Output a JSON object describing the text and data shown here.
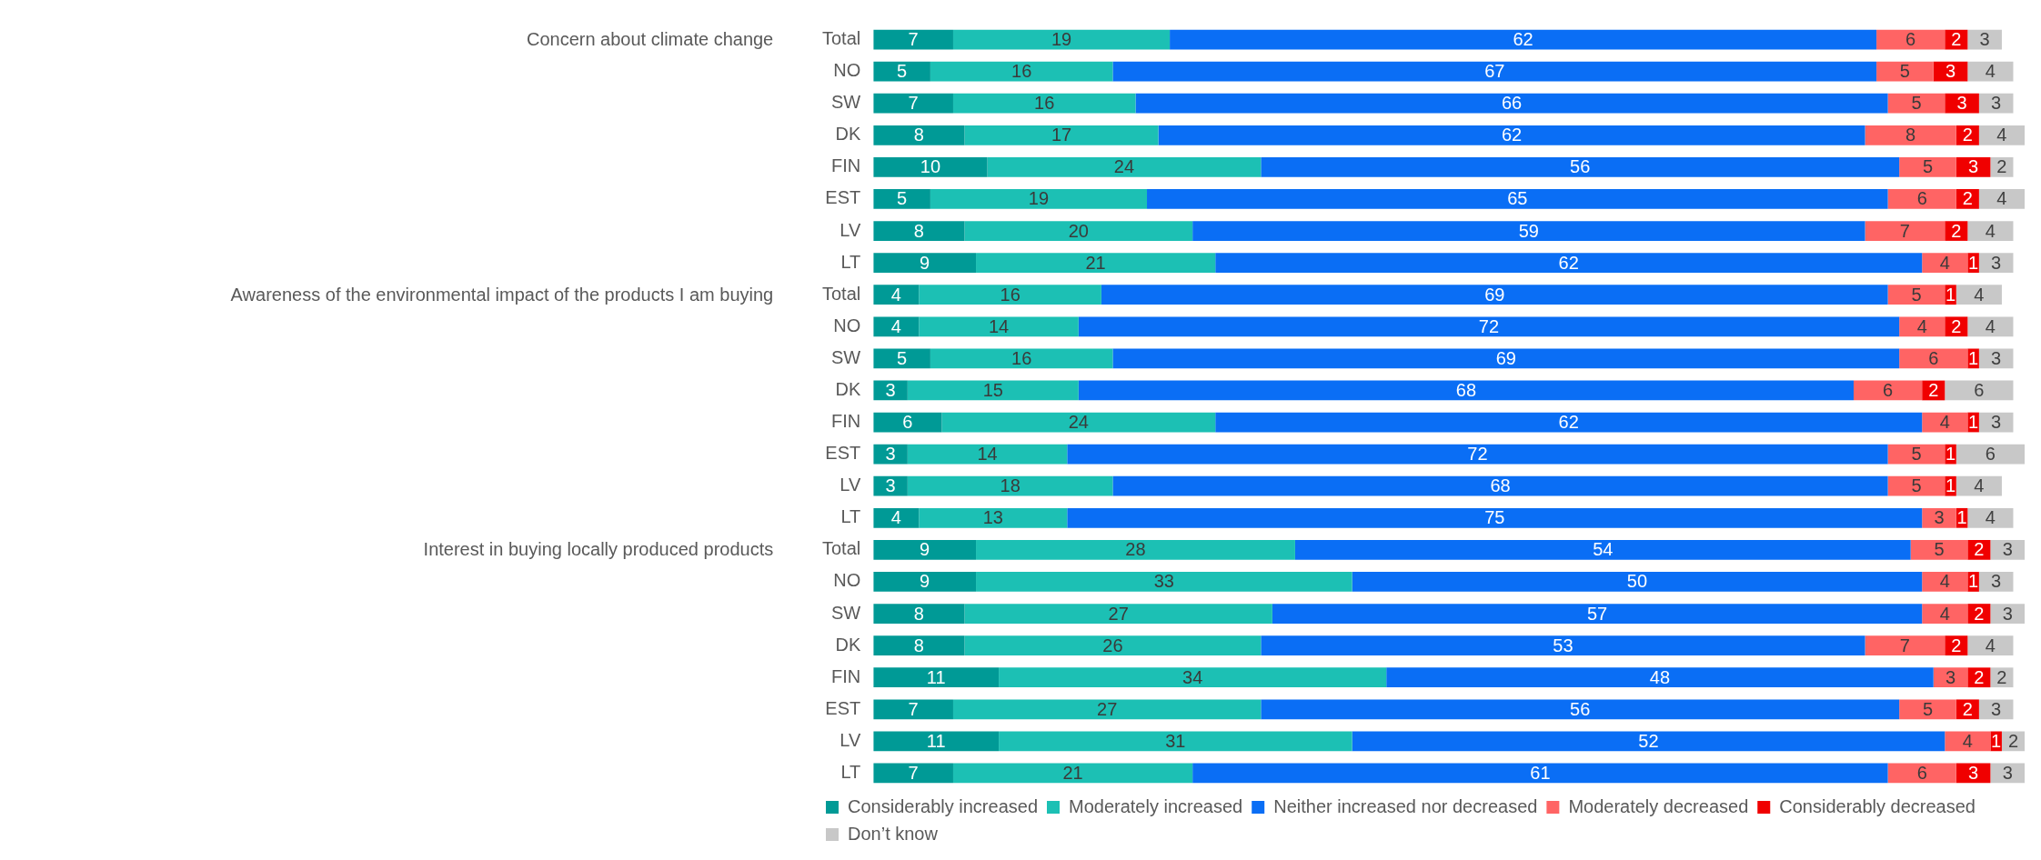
{
  "chart_data": {
    "type": "bar",
    "orientation": "horizontal",
    "stacked": true,
    "data_labels": true,
    "legend": "bottom",
    "annotations": [
      "Concern about climate change",
      "Awareness of the environmental impact of the products I am buying",
      "Interest in buying locally produced products"
    ],
    "categories": [
      "Total",
      "NO",
      "SW",
      "DK",
      "FIN",
      "EST",
      "LV",
      "LT",
      "Total",
      "NO",
      "SW",
      "DK",
      "FIN",
      "EST",
      "LV",
      "LT",
      "Total",
      "NO",
      "SW",
      "DK",
      "FIN",
      "EST",
      "LV",
      "LT"
    ],
    "series": [
      {
        "name": "Considerably increased",
        "color": "#009a96",
        "values": [
          7,
          5,
          7,
          8,
          10,
          5,
          8,
          9,
          4,
          4,
          5,
          3,
          6,
          3,
          3,
          4,
          9,
          9,
          8,
          8,
          11,
          7,
          11,
          7
        ]
      },
      {
        "name": "Moderately increased",
        "color": "#1cc0b4",
        "values": [
          19,
          16,
          16,
          17,
          24,
          19,
          20,
          21,
          16,
          14,
          16,
          15,
          24,
          14,
          18,
          13,
          28,
          33,
          27,
          26,
          34,
          27,
          31,
          21
        ]
      },
      {
        "name": "Neither increased nor decreased",
        "color": "#0a6ef5",
        "values": [
          62,
          67,
          66,
          62,
          56,
          65,
          59,
          62,
          69,
          72,
          69,
          68,
          62,
          72,
          68,
          75,
          54,
          50,
          57,
          53,
          48,
          56,
          52,
          61
        ]
      },
      {
        "name": "Moderately decreased",
        "color": "#ff6464",
        "values": [
          6,
          5,
          5,
          8,
          5,
          6,
          7,
          4,
          5,
          4,
          6,
          6,
          4,
          5,
          5,
          3,
          5,
          4,
          4,
          7,
          3,
          5,
          4,
          6
        ]
      },
      {
        "name": "Considerably decreased",
        "color": "#f00000",
        "values": [
          2,
          3,
          3,
          2,
          3,
          2,
          2,
          1,
          1,
          2,
          1,
          2,
          1,
          1,
          1,
          1,
          2,
          1,
          2,
          2,
          2,
          2,
          1,
          3
        ]
      },
      {
        "name": "Don’t know",
        "color": "#c8c8c8",
        "values": [
          3,
          4,
          3,
          4,
          2,
          4,
          4,
          3,
          4,
          4,
          3,
          6,
          3,
          6,
          4,
          4,
          3,
          3,
          3,
          4,
          2,
          3,
          2,
          3
        ]
      }
    ]
  }
}
